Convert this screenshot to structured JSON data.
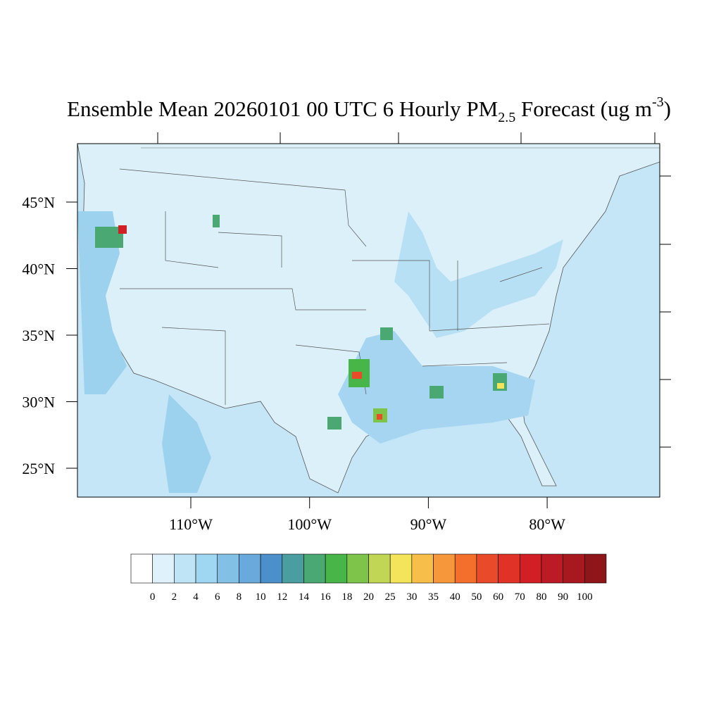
{
  "map": {
    "title": {
      "main": "Ensemble Mean 20260101 00 UTC 6 Hourly PM",
      "sub": "2.5",
      "rest": " Forecast (ug m",
      "sup": "-3",
      "end": ")"
    },
    "lat_ticks": [
      {
        "value": 45,
        "label": "45°N"
      },
      {
        "value": 40,
        "label": "40°N"
      },
      {
        "value": 35,
        "label": "35°N"
      },
      {
        "value": 30,
        "label": "30°N"
      },
      {
        "value": 25,
        "label": "25°N"
      }
    ],
    "lon_ticks": [
      {
        "value": -110,
        "label": "110°W"
      },
      {
        "value": -100,
        "label": "100°W"
      },
      {
        "value": -90,
        "label": "90°W"
      },
      {
        "value": -80,
        "label": "80°W"
      }
    ],
    "legend": {
      "levels": [
        0,
        2,
        4,
        6,
        8,
        10,
        12,
        14,
        16,
        18,
        20,
        25,
        30,
        35,
        40,
        50,
        60,
        70,
        80,
        90,
        100
      ],
      "colors": [
        "#ffffff",
        "#dff1fb",
        "#bfe4f6",
        "#9fd6f2",
        "#83c0e6",
        "#6aa9dc",
        "#4b8fcb",
        "#4a9ea0",
        "#4aa872",
        "#48b548",
        "#7ec34a",
        "#c2d655",
        "#f4e45b",
        "#f7bf4a",
        "#f7973c",
        "#f46e2c",
        "#e84a2a",
        "#e03226",
        "#d21f26",
        "#bc1a24",
        "#a8181f",
        "#8e1519"
      ]
    }
  }
}
